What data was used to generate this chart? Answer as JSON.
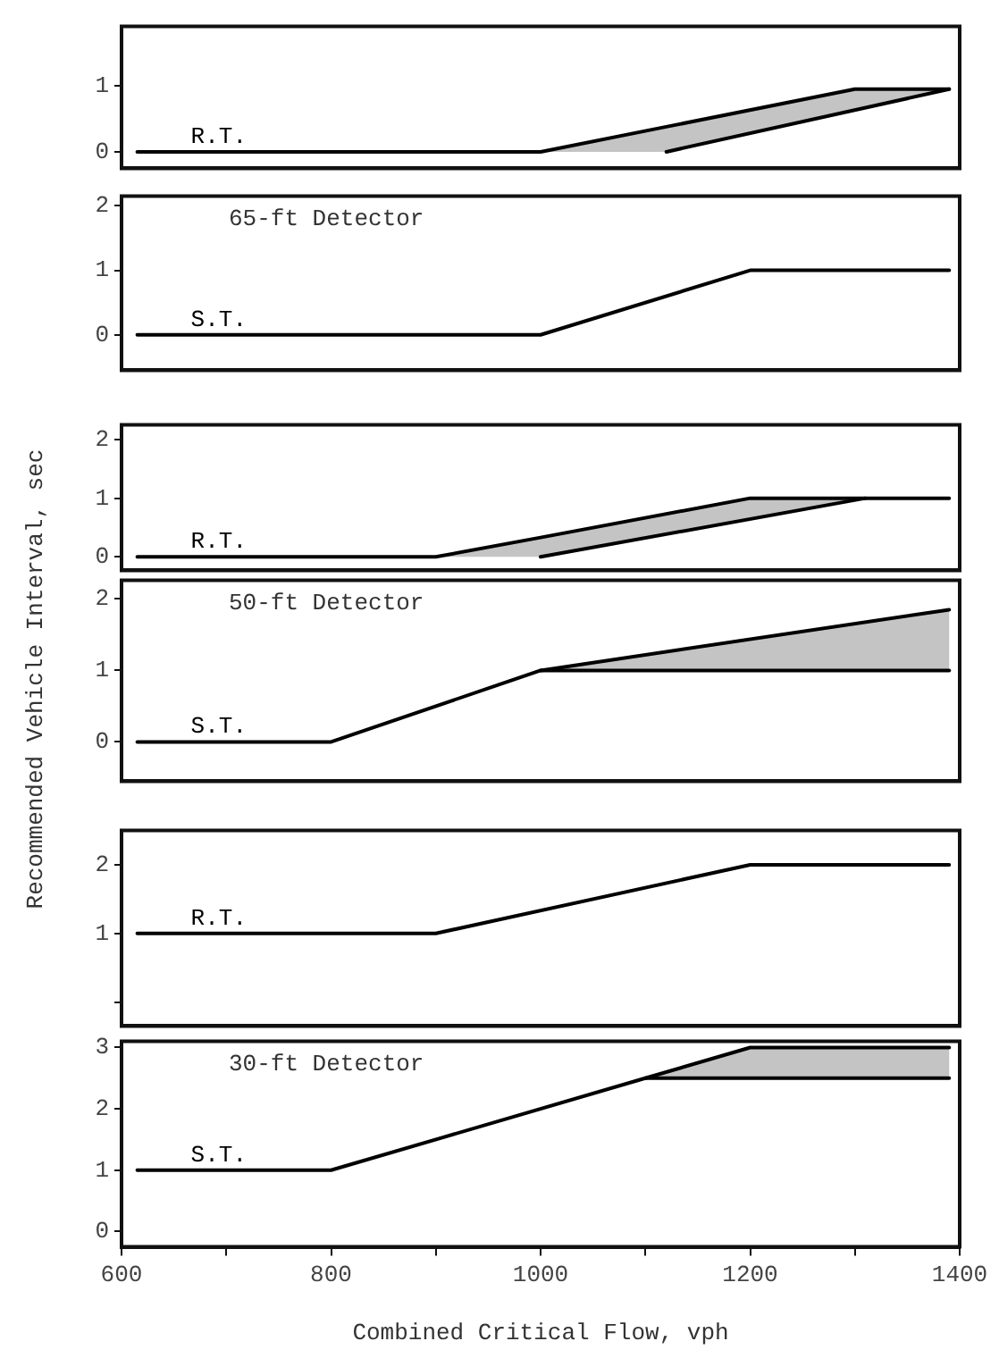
{
  "chart_data": [
    {
      "type": "line",
      "xlim": [
        600,
        1400
      ],
      "ylim": [
        -0.25,
        1.9
      ],
      "yticks": [
        0,
        1
      ],
      "tick_labels": "y",
      "grid": false,
      "legend": false,
      "series": [
        {
          "name": "R.T.",
          "color": "#000000",
          "x": [
            615,
            1000,
            1120,
            1300,
            1390
          ],
          "values": [
            0,
            0,
            0.38,
            0.95,
            0.95
          ],
          "lower": [
            null,
            0,
            0,
            0.63,
            0.95
          ],
          "upper": [
            null,
            0,
            0.38,
            0.95,
            0.95
          ]
        },
        {
          "color": "#000000",
          "x": [
            1120,
            1390
          ],
          "values": [
            0,
            0.95
          ]
        }
      ]
    },
    {
      "type": "line",
      "title": "65-ft Detector",
      "xlim": [
        600,
        1400
      ],
      "ylim": [
        -0.55,
        2.15
      ],
      "yticks": [
        0,
        1,
        2
      ],
      "tick_labels": "y",
      "grid": false,
      "legend": false,
      "series": [
        {
          "name": "S.T.",
          "color": "#000000",
          "x": [
            615,
            1000,
            1200,
            1390
          ],
          "values": [
            0,
            0,
            1,
            1
          ]
        }
      ]
    },
    {
      "type": "line",
      "xlim": [
        600,
        1400
      ],
      "ylim": [
        -0.23,
        2.25
      ],
      "yticks": [
        0,
        1,
        2
      ],
      "tick_labels": "y",
      "grid": false,
      "legend": false,
      "series": [
        {
          "name": "R.T.",
          "color": "#000000",
          "x": [
            615,
            900,
            1000,
            1200,
            1310,
            1390
          ],
          "values": [
            0,
            0,
            0.33,
            1,
            1,
            1
          ],
          "lower": [
            null,
            0,
            0,
            0.65,
            1,
            null
          ],
          "upper": [
            null,
            0,
            0.33,
            1,
            1,
            null
          ]
        },
        {
          "color": "#000000",
          "x": [
            1000,
            1310
          ],
          "values": [
            0,
            1
          ]
        }
      ]
    },
    {
      "type": "line",
      "title": "50-ft Detector",
      "ylabel": "Recommended Vehicle Interval, sec",
      "xlim": [
        600,
        1400
      ],
      "ylim": [
        -0.55,
        2.26
      ],
      "yticks": [
        0,
        1,
        2
      ],
      "tick_labels": "y",
      "grid": false,
      "legend": false,
      "series": [
        {
          "name": "S.T.",
          "color": "#000000",
          "x": [
            615,
            800,
            1000,
            1390
          ],
          "values": [
            0,
            0,
            1,
            1.85
          ],
          "lower": [
            null,
            null,
            1,
            1
          ],
          "upper": [
            null,
            null,
            1,
            1.85
          ]
        },
        {
          "color": "#000000",
          "x": [
            1000,
            1390
          ],
          "values": [
            1,
            1
          ]
        }
      ]
    },
    {
      "type": "line",
      "xlim": [
        600,
        1400
      ],
      "ylim": [
        -0.35,
        2.5
      ],
      "yticks": [
        {
          "value": 0,
          "label": null
        },
        1,
        2
      ],
      "tick_labels": "y",
      "grid": false,
      "legend": false,
      "series": [
        {
          "name": "R.T.",
          "color": "#000000",
          "x": [
            615,
            900,
            1200,
            1390
          ],
          "values": [
            1,
            1,
            2,
            2
          ]
        }
      ]
    },
    {
      "type": "line",
      "title": "30-ft Detector",
      "xlabel": "Combined Critical Flow, vph",
      "xlim": [
        600,
        1400
      ],
      "xticks": [
        600,
        {
          "value": 700,
          "label": null
        },
        800,
        {
          "value": 900,
          "label": null
        },
        1000,
        {
          "value": 1100,
          "label": null
        },
        1200,
        {
          "value": 1300,
          "label": null
        },
        1400
      ],
      "ylim": [
        -0.25,
        3.1
      ],
      "yticks": [
        0,
        1,
        2,
        3
      ],
      "grid": false,
      "legend": false,
      "series": [
        {
          "name": "S.T.",
          "color": "#000000",
          "x": [
            615,
            800,
            1100,
            1200,
            1390
          ],
          "values": [
            1,
            1,
            2.5,
            3,
            3
          ],
          "lower": [
            null,
            null,
            2.5,
            2.5,
            2.5
          ],
          "upper": [
            null,
            null,
            2.5,
            3,
            3
          ]
        },
        {
          "color": "#000000",
          "x": [
            1100,
            1390
          ],
          "values": [
            2.5,
            2.5
          ]
        }
      ]
    }
  ]
}
